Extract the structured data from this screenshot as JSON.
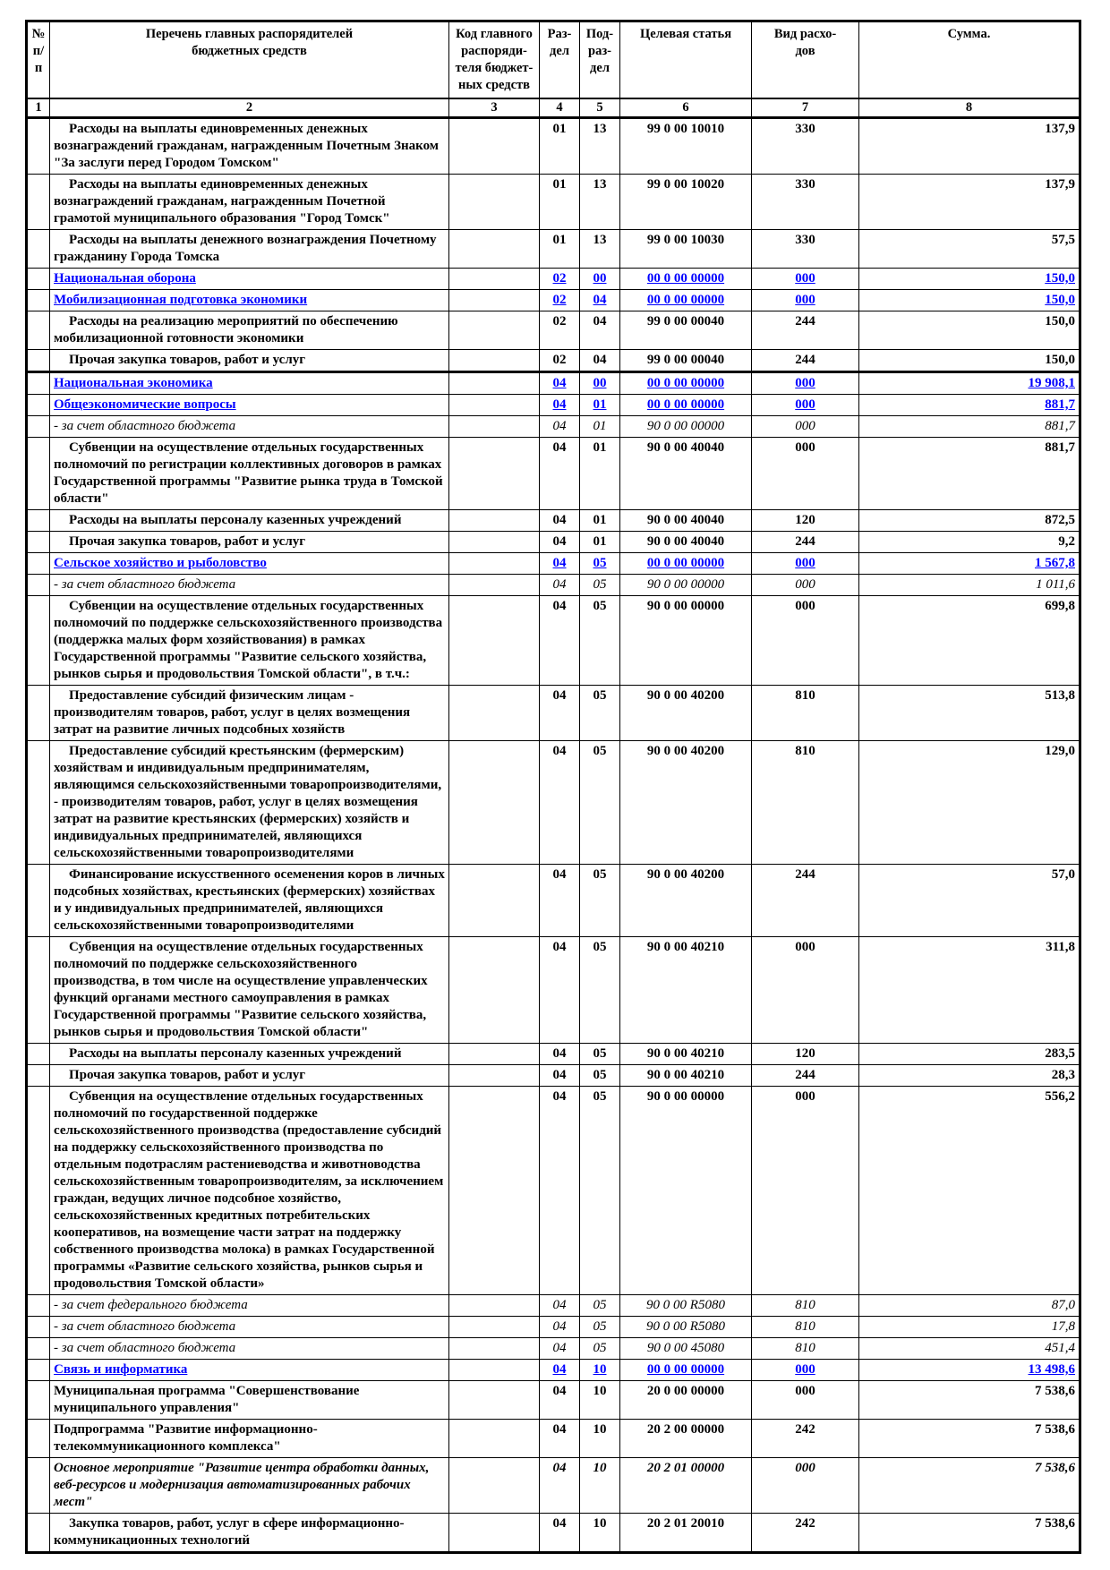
{
  "page": {
    "background": "#ffffff"
  },
  "colors": {
    "section_text": "#0000ff",
    "border": "#000000",
    "body_text": "#000000"
  },
  "table": {
    "header": {
      "col_num": "№\nп/п",
      "col_name": "Перечень главных распорядителей\nбюджетных средств",
      "col_code": "Код главного\nраспоряди-\nтеля бюджет-\nных средств",
      "col_razdel": "Раз-\nдел",
      "col_podrazdel": "Под-\nраз-\nдел",
      "col_target": "Целевая статья",
      "col_vid": "Вид расхо-\nдов",
      "col_summa": "Сумма."
    },
    "column_numbers": [
      "1",
      "2",
      "3",
      "4",
      "5",
      "6",
      "7",
      "8"
    ],
    "rows": [
      {
        "name": "Расходы на выплаты единовременных денежных вознаграждений гражданам, награжденным Почетным Знаком \"За заслуги перед Городом Томском\"",
        "razdel": "01",
        "podrazdel": "13",
        "target": "99 0 00 10010",
        "vid": "330",
        "summa": "137,9",
        "style": "normal",
        "indent": true,
        "thick_top": false
      },
      {
        "name": "Расходы на выплаты единовременных денежных вознаграждений гражданам, награжденным Почетной грамотой муниципального образования \"Город Томск\"",
        "razdel": "01",
        "podrazdel": "13",
        "target": "99 0 00 10020",
        "vid": "330",
        "summa": "137,9",
        "style": "normal",
        "indent": true,
        "thick_top": false
      },
      {
        "name": "Расходы на выплаты денежного вознаграждения Почетному гражданину Города Томска",
        "razdel": "01",
        "podrazdel": "13",
        "target": "99 0 00 10030",
        "vid": "330",
        "summa": "57,5",
        "style": "normal",
        "indent": true,
        "thick_top": false
      },
      {
        "name": "Национальная оборона",
        "razdel": "02",
        "podrazdel": "00",
        "target": "00 0 00 00000",
        "vid": "000",
        "summa": "150,0",
        "style": "section",
        "indent": false,
        "thick_top": false
      },
      {
        "name": "Мобилизационная подготовка экономики",
        "razdel": "02",
        "podrazdel": "04",
        "target": "00 0 00 00000",
        "vid": "000",
        "summa": "150,0",
        "style": "section",
        "indent": false,
        "thick_top": false
      },
      {
        "name": "Расходы на реализацию мероприятий по обеспечению мобилизационной готовности экономики",
        "razdel": "02",
        "podrazdel": "04",
        "target": "99 0 00 00040",
        "vid": "244",
        "summa": "150,0",
        "style": "normal",
        "indent": true,
        "thick_top": false
      },
      {
        "name": "Прочая закупка товаров, работ и услуг",
        "razdel": "02",
        "podrazdel": "04",
        "target": "99 0 00 00040",
        "vid": "244",
        "summa": "150,0",
        "style": "normal",
        "indent": true,
        "thick_top": false
      },
      {
        "name": "Национальная экономика",
        "razdel": "04",
        "podrazdel": "00",
        "target": "00 0 00 00000",
        "vid": "000",
        "summa": "19 908,1",
        "style": "section",
        "indent": false,
        "thick_top": true
      },
      {
        "name": "Общеэкономические вопросы",
        "razdel": "04",
        "podrazdel": "01",
        "target": "00 0 00 00000",
        "vid": "000",
        "summa": "881,7",
        "style": "section",
        "indent": false,
        "thick_top": false
      },
      {
        "name": "- за счет областного бюджета",
        "razdel": "04",
        "podrazdel": "01",
        "target": "90 0 00 00000",
        "vid": "000",
        "summa": "881,7",
        "style": "italic",
        "indent": false,
        "thick_top": false
      },
      {
        "name": "Субвенции на осуществление отдельных государственных полномочий по регистрации коллективных договоров в рамках Государственной программы \"Развитие рынка труда в Томской области\"",
        "razdel": "04",
        "podrazdel": "01",
        "target": "90 0 00 40040",
        "vid": "000",
        "summa": "881,7",
        "style": "normal",
        "indent": true,
        "thick_top": false
      },
      {
        "name": "Расходы на выплаты персоналу казенных учреждений",
        "razdel": "04",
        "podrazdel": "01",
        "target": "90 0 00 40040",
        "vid": "120",
        "summa": "872,5",
        "style": "normal",
        "indent": true,
        "thick_top": false
      },
      {
        "name": "Прочая закупка товаров, работ и услуг",
        "razdel": "04",
        "podrazdel": "01",
        "target": "90 0 00 40040",
        "vid": "244",
        "summa": "9,2",
        "style": "normal",
        "indent": true,
        "thick_top": false
      },
      {
        "name": "Сельское хозяйство и рыболовство",
        "razdel": "04",
        "podrazdel": "05",
        "target": "00 0 00 00000",
        "vid": "000",
        "summa": "1 567,8",
        "style": "section",
        "indent": false,
        "thick_top": false
      },
      {
        "name": "- за счет областного бюджета",
        "razdel": "04",
        "podrazdel": "05",
        "target": "90 0 00 00000",
        "vid": "000",
        "summa": "1 011,6",
        "style": "italic",
        "indent": false,
        "thick_top": false
      },
      {
        "name": "Субвенции на осуществление отдельных государственных полномочий по поддержке сельскохозяйственного производства (поддержка малых форм хозяйствования) в рамках Государственной программы \"Развитие сельского хозяйства, рынков сырья и продовольствия Томской области\", в т.ч.:",
        "razdel": "04",
        "podrazdel": "05",
        "target": "90 0 00 00000",
        "vid": "000",
        "summa": "699,8",
        "style": "normal",
        "indent": true,
        "thick_top": false
      },
      {
        "name": "Предоставление субсидий физическим лицам - производителям товаров, работ, услуг в целях возмещения затрат на развитие личных подсобных хозяйств",
        "razdel": "04",
        "podrazdel": "05",
        "target": "90 0 00 40200",
        "vid": "810",
        "summa": "513,8",
        "style": "normal",
        "indent": true,
        "thick_top": false
      },
      {
        "name": "Предоставление субсидий крестьянским (фермерским) хозяйствам и индивидуальным предпринимателям, являющимся сельскохозяйственными товаропроизводителями, - производителям товаров, работ, услуг в целях возмещения затрат на развитие крестьянских (фермерских) хозяйств и индивидуальных предпринимателей, являющихся сельскохозяйственными товаропроизводителями",
        "razdel": "04",
        "podrazdel": "05",
        "target": "90 0 00 40200",
        "vid": "810",
        "summa": "129,0",
        "style": "normal",
        "indent": true,
        "thick_top": false
      },
      {
        "name": "Финансирование искусственного осеменения коров в личных подсобных хозяйствах, крестьянских (фермерских) хозяйствах и у индивидуальных предпринимателей, являющихся сельскохозяйственными товаропроизводителями",
        "razdel": "04",
        "podrazdel": "05",
        "target": "90 0 00 40200",
        "vid": "244",
        "summa": "57,0",
        "style": "normal",
        "indent": true,
        "thick_top": false
      },
      {
        "name": "Субвенция на осуществление отдельных государственных полномочий по поддержке сельскохозяйственного производства, в том числе на осуществление управленческих функций органами местного самоуправления  в рамках Государственной программы \"Развитие сельского хозяйства, рынков сырья и продовольствия Томской области\"",
        "razdel": "04",
        "podrazdel": "05",
        "target": "90 0 00 40210",
        "vid": "000",
        "summa": "311,8",
        "style": "normal",
        "indent": true,
        "thick_top": false
      },
      {
        "name": "Расходы на выплаты персоналу казенных учреждений",
        "razdel": "04",
        "podrazdel": "05",
        "target": "90 0 00 40210",
        "vid": "120",
        "summa": "283,5",
        "style": "normal",
        "indent": true,
        "thick_top": false
      },
      {
        "name": "Прочая закупка товаров, работ и услуг",
        "razdel": "04",
        "podrazdel": "05",
        "target": "90 0 00 40210",
        "vid": "244",
        "summa": "28,3",
        "style": "normal",
        "indent": true,
        "thick_top": false
      },
      {
        "name": "Субвенция на осуществление отдельных государственных полномочий по государственной  поддержке сельскохозяйственного производства (предоставление субсидий на поддержку сельскохозяйственного производства по отдельным подотраслям растениеводства и животноводства сельскохозяйственным товаропроизводителям, за исключением граждан, ведущих личное подсобное хозяйство, сельскохозяйственных кредитных потребительских кооперативов, на возмещение части затрат на поддержку собственного производства молока) в рамках Государственной программы «Развитие сельского хозяйства, рынков сырья и продовольствия Томской области»",
        "razdel": "04",
        "podrazdel": "05",
        "target": "90 0 00 00000",
        "vid": "000",
        "summa": "556,2",
        "style": "normal",
        "indent": true,
        "thick_top": false
      },
      {
        "name": "- за счет федерального бюджета",
        "razdel": "04",
        "podrazdel": "05",
        "target": "90 0 00 R5080",
        "vid": "810",
        "summa": "87,0",
        "style": "italic",
        "indent": false,
        "thick_top": false
      },
      {
        "name": "- за счет областного бюджета",
        "razdel": "04",
        "podrazdel": "05",
        "target": "90 0 00 R5080",
        "vid": "810",
        "summa": "17,8",
        "style": "italic",
        "indent": false,
        "thick_top": false
      },
      {
        "name": "- за счет областного бюджета",
        "razdel": "04",
        "podrazdel": "05",
        "target": "90 0 00 45080",
        "vid": "810",
        "summa": "451,4",
        "style": "italic",
        "indent": false,
        "thick_top": false
      },
      {
        "name": "Связь и информатика",
        "razdel": "04",
        "podrazdel": "10",
        "target": "00 0 00 00000",
        "vid": "000",
        "summa": "13 498,6",
        "style": "section",
        "indent": false,
        "thick_top": false
      },
      {
        "name": "Муниципальная программа \"Совершенствование муниципального управления\"",
        "razdel": "04",
        "podrazdel": "10",
        "target": "20 0 00 00000",
        "vid": "000",
        "summa": "7 538,6",
        "style": "normal",
        "indent": false,
        "thick_top": false
      },
      {
        "name": "Подпрограмма \"Развитие информационно-телекоммуникационного комплекса\"",
        "razdel": "04",
        "podrazdel": "10",
        "target": "20 2 00 00000",
        "vid": "242",
        "summa": "7 538,6",
        "style": "normal",
        "indent": false,
        "thick_top": false
      },
      {
        "name": "Основное мероприятие \"Развитие центра обработки данных, веб-ресурсов и модернизация автоматизированных рабочих мест\"",
        "razdel": "04",
        "podrazdel": "10",
        "target": "20 2 01 00000",
        "vid": "000",
        "summa": "7 538,6",
        "style": "bolditalic",
        "indent": false,
        "thick_top": false
      },
      {
        "name": "Закупка товаров, работ, услуг в сфере информационно-коммуникационных технологий",
        "razdel": "04",
        "podrazdel": "10",
        "target": "20 2 01 20010",
        "vid": "242",
        "summa": "7 538,6",
        "style": "normal",
        "indent": true,
        "thick_top": false
      }
    ]
  }
}
